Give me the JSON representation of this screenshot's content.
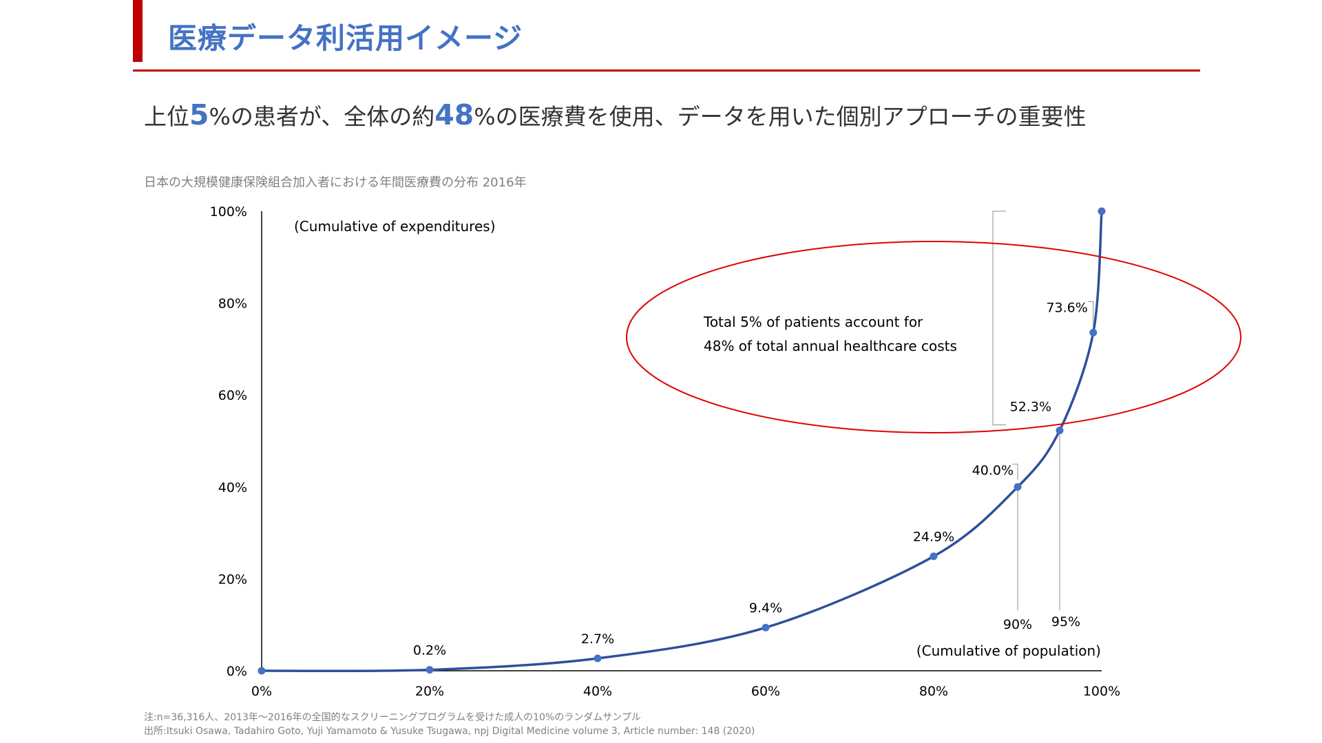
{
  "slide": {
    "title": "医療データ利活用イメージ",
    "headline": {
      "p1": "上位",
      "n1": "5",
      "p2": "%の患者が、全体の約",
      "n2": "48",
      "p3": "%の医療費を使用、データを用いた個別アプローチの重要性"
    },
    "chart_caption": "日本の大規模健康保険組合加入者における年間医療費の分布 2016年",
    "note": "注:n=36,316人、2013年～2016年の全国的なスクリーニングプログラムを受けた成人の10%のランダムサンプル",
    "source": "出所:Itsuki Osawa, Tadahiro Goto, Yuji Yamamoto & Yusuke Tsugawa, npj Digital Medicine volume 3, Article number: 148 (2020)",
    "colors": {
      "accent_red": "#c00000",
      "title_blue": "#4472c4",
      "curve": "#2f4f9b",
      "marker": "#4472c4",
      "ellipse": "#e00000"
    }
  },
  "chart_data": {
    "type": "line",
    "title": "",
    "xlabel": "(Cumulative of population)",
    "ylabel": "(Cumulative of expenditures)",
    "xlim": [
      0,
      100
    ],
    "ylim": [
      0,
      100
    ],
    "x_ticks": [
      "0%",
      "20%",
      "40%",
      "60%",
      "80%",
      "100%"
    ],
    "y_ticks": [
      "0%",
      "20%",
      "40%",
      "60%",
      "80%",
      "100%"
    ],
    "grid": false,
    "legend": "none",
    "series": [
      {
        "points": [
          {
            "x": 0,
            "y": 0
          },
          {
            "x": 20,
            "y": 0.2,
            "label": "0.2%"
          },
          {
            "x": 40,
            "y": 2.7,
            "label": "2.7%"
          },
          {
            "x": 60,
            "y": 9.4,
            "label": "9.4%"
          },
          {
            "x": 80,
            "y": 24.9,
            "label": "24.9%"
          },
          {
            "x": 90,
            "y": 40.0,
            "label": "40.0%"
          },
          {
            "x": 95,
            "y": 52.3,
            "label": "52.3%"
          },
          {
            "x": 99,
            "y": 73.6,
            "label": "73.6%"
          },
          {
            "x": 100,
            "y": 100
          }
        ]
      }
    ],
    "annotations": {
      "callout_line1": "Total 5% of patients account for",
      "callout_line2": "48% of total annual healthcare costs",
      "x90_label": "90%",
      "x95_label": "95%"
    }
  }
}
